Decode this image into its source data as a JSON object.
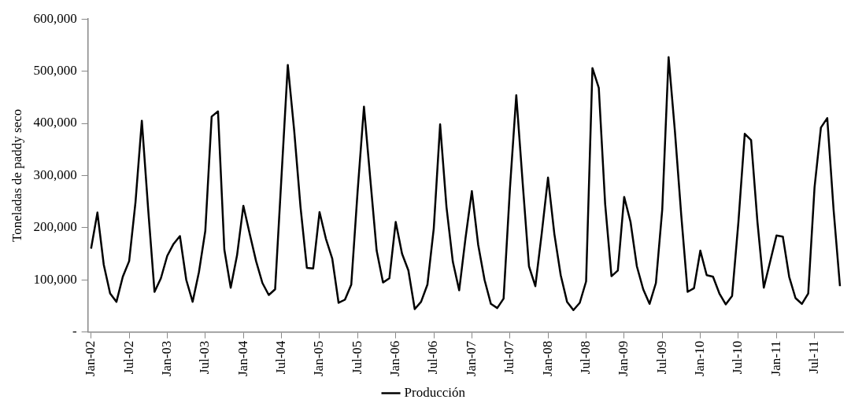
{
  "chart_data": {
    "type": "line",
    "ylabel": "Toneladas de paddy seco",
    "categories": [
      "Jan-02",
      null,
      null,
      null,
      null,
      null,
      "Jul-02",
      null,
      null,
      null,
      null,
      null,
      "Jan-03",
      null,
      null,
      null,
      null,
      null,
      "Jul-03",
      null,
      null,
      null,
      null,
      null,
      "Jan-04",
      null,
      null,
      null,
      null,
      null,
      "Jul-04",
      null,
      null,
      null,
      null,
      null,
      "Jan-05",
      null,
      null,
      null,
      null,
      null,
      "Jul-05",
      null,
      null,
      null,
      null,
      null,
      "Jan-06",
      null,
      null,
      null,
      null,
      null,
      "Jul-06",
      null,
      null,
      null,
      null,
      null,
      "Jan-07",
      null,
      null,
      null,
      null,
      null,
      "Jul-07",
      null,
      null,
      null,
      null,
      null,
      "Jan-08",
      null,
      null,
      null,
      null,
      null,
      "Jul-08",
      null,
      null,
      null,
      null,
      null,
      "Jan-09",
      null,
      null,
      null,
      null,
      null,
      "Jul-09",
      null,
      null,
      null,
      null,
      null,
      "Jan-10",
      null,
      null,
      null,
      null,
      null,
      "Jul-10",
      null,
      null,
      null,
      null,
      null,
      "Jan-11",
      null,
      null,
      null,
      null,
      null,
      "Jul-11",
      null,
      null,
      null,
      null
    ],
    "series": [
      {
        "name": "Producción",
        "color": "#000000",
        "values": [
          160000,
          229000,
          129000,
          74000,
          58000,
          106000,
          136000,
          249000,
          405000,
          235000,
          77000,
          103000,
          146000,
          169000,
          184000,
          100000,
          58000,
          115000,
          194000,
          413000,
          423000,
          158000,
          85000,
          147000,
          242000,
          188000,
          136000,
          94000,
          71000,
          82000,
          297000,
          512000,
          387000,
          240000,
          123000,
          122000,
          230000,
          179000,
          141000,
          56000,
          62000,
          91000,
          270000,
          432000,
          293000,
          156000,
          95000,
          103000,
          211000,
          150000,
          118000,
          44000,
          58000,
          91000,
          199000,
          398000,
          240000,
          135000,
          80000,
          180000,
          270000,
          167000,
          100000,
          54000,
          46000,
          64000,
          275000,
          454000,
          287000,
          126000,
          88000,
          188000,
          296000,
          188000,
          109000,
          58000,
          42000,
          56000,
          97000,
          506000,
          468000,
          246000,
          107000,
          118000,
          259000,
          211000,
          126000,
          82000,
          54000,
          94000,
          235000,
          527000,
          384000,
          223000,
          77000,
          84000,
          156000,
          109000,
          106000,
          74000,
          53000,
          69000,
          211000,
          380000,
          368000,
          211000,
          85000,
          135000,
          185000,
          183000,
          106000,
          65000,
          54000,
          74000,
          278000,
          392000,
          410000,
          234000,
          88000
        ]
      }
    ],
    "ylim": [
      0,
      600000
    ],
    "yticks": [
      {
        "value": 0,
        "label": "-"
      },
      {
        "value": 100000,
        "label": "100,000"
      },
      {
        "value": 200000,
        "label": "200,000"
      },
      {
        "value": 300000,
        "label": "300,000"
      },
      {
        "value": 400000,
        "label": "400,000"
      },
      {
        "value": 500000,
        "label": "500,000"
      },
      {
        "value": 600000,
        "label": "600,000"
      }
    ],
    "grid": false,
    "legend": "bottom",
    "marker": "none",
    "line_style": "solid"
  }
}
